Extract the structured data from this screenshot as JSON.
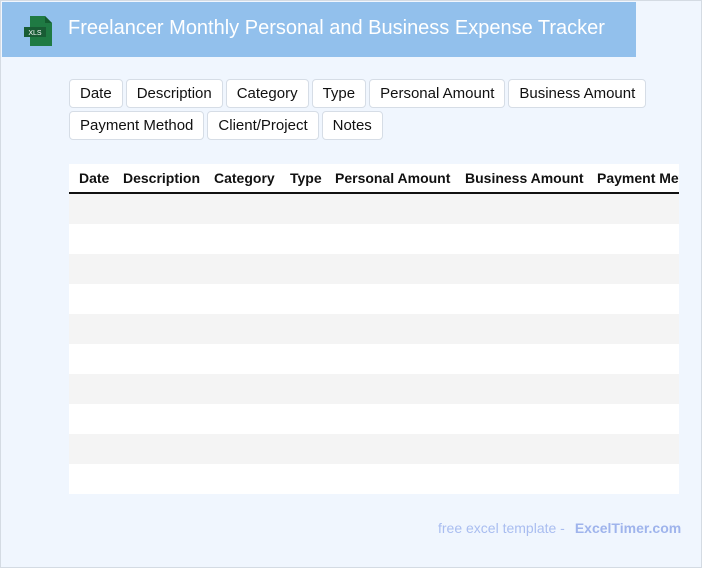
{
  "header": {
    "title": "Freelancer Monthly Personal and Business Expense Tracker",
    "icon": "xls-file-icon",
    "icon_label": "XLS"
  },
  "chips": [
    "Date",
    "Description",
    "Category",
    "Type",
    "Personal Amount",
    "Business Amount",
    "Payment Method",
    "Client/Project",
    "Notes"
  ],
  "table": {
    "columns": [
      "Date",
      "Description",
      "Category",
      "Type",
      "Personal Amount",
      "Business Amount",
      "Payment Method"
    ],
    "rows": 10
  },
  "footer": {
    "text": "free excel template -",
    "brand": "ExcelTimer.com"
  }
}
